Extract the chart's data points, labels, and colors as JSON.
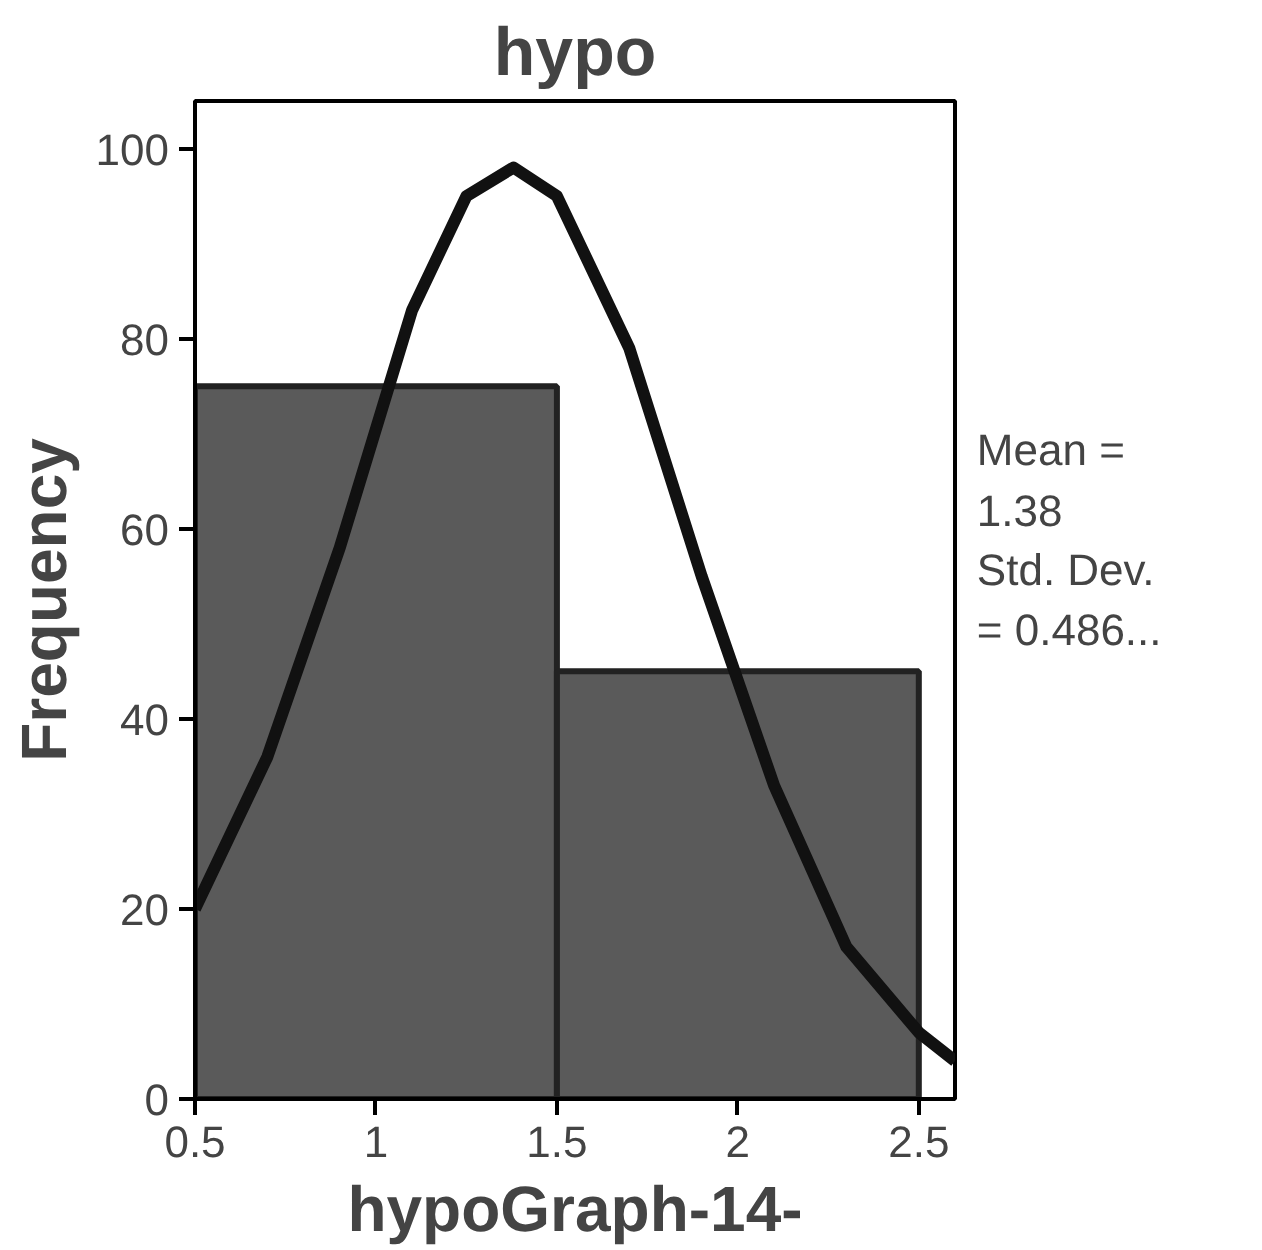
{
  "chart_data": {
    "type": "histogram",
    "title": "hypo",
    "xlabel": "hypoGraph-14-",
    "ylabel": "Frequency",
    "bins": [
      0.5,
      1.5,
      2.5
    ],
    "values": [
      75,
      45
    ],
    "color": "#5a5a5a",
    "series": [
      {
        "type": "line",
        "color": "#111111",
        "x": [
          0.5,
          0.7,
          0.9,
          1.1,
          1.25,
          1.38,
          1.5,
          1.7,
          1.9,
          2.1,
          2.3,
          2.5,
          2.6
        ],
        "values": [
          20,
          36,
          58,
          83,
          95,
          98,
          95,
          79,
          55,
          33,
          16,
          7,
          4
        ]
      }
    ],
    "xlim": [
      0.5,
      2.6
    ],
    "ylim": [
      0,
      105
    ],
    "xticks": [
      0.5,
      1,
      1.5,
      2,
      2.5
    ],
    "yticks": [
      0,
      20,
      40,
      60,
      80,
      100
    ],
    "grid": false,
    "annotations": [
      "Mean =\n1.38\nStd. Dev.\n= 0.486..."
    ]
  }
}
